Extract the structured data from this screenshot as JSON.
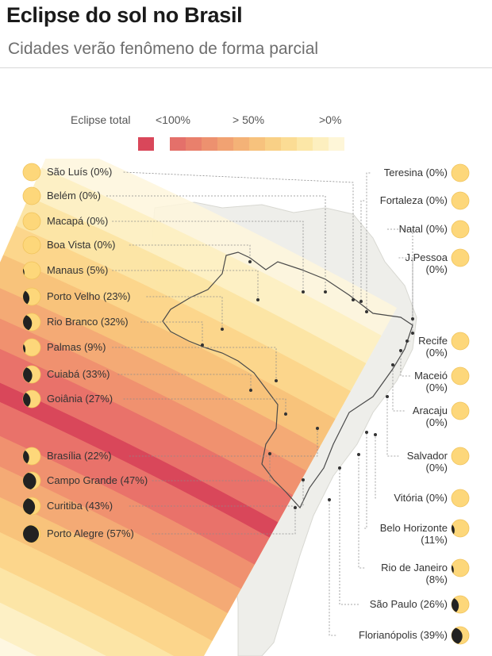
{
  "header": {
    "title": "Eclipse do sol no Brasil",
    "subtitle": "Cidades verão fenômeno de forma parcial"
  },
  "legend": {
    "total_label": "Eclipse total",
    "total_color": "#d9475a",
    "scale_labels": [
      "<100%",
      "> 50%",
      ">0%"
    ],
    "scale_colors": [
      "#e4706a",
      "#e9806c",
      "#ed916f",
      "#f1a272",
      "#f4b277",
      "#f7c27d",
      "#f9d086",
      "#fbdc94",
      "#fce7a7",
      "#fdefbf",
      "#fef6d8"
    ]
  },
  "colors": {
    "sun": "#fdd77a",
    "sun_stroke": "#f0c35c",
    "moon": "#222222",
    "leader": "#8a8a8a"
  },
  "cities_left": [
    {
      "label": "São Luís (0%)",
      "coverage": 0
    },
    {
      "label": "Belém (0%)",
      "coverage": 0
    },
    {
      "label": "Macapá (0%)",
      "coverage": 0
    },
    {
      "label": "Boa Vista (0%)",
      "coverage": 0
    },
    {
      "label": "Manaus (5%)",
      "coverage": 5
    },
    {
      "label": "Porto Velho (23%)",
      "coverage": 23
    },
    {
      "label": "Rio Branco (32%)",
      "coverage": 32
    },
    {
      "label": "Palmas (9%)",
      "coverage": 9
    },
    {
      "label": "Cuiabá (33%)",
      "coverage": 33
    },
    {
      "label": "Goiânia (27%)",
      "coverage": 27
    },
    {
      "label": "Brasília (22%)",
      "coverage": 22
    },
    {
      "label": "Campo Grande (47%)",
      "coverage": 47
    },
    {
      "label": "Curitiba (43%)",
      "coverage": 43
    },
    {
      "label": "Porto Alegre (57%)",
      "coverage": 57
    }
  ],
  "cities_right": [
    {
      "label": "Teresina (0%)",
      "line2": "",
      "coverage": 0
    },
    {
      "label": "Fortaleza (0%)",
      "line2": "",
      "coverage": 0
    },
    {
      "label": "Natal (0%)",
      "line2": "",
      "coverage": 0
    },
    {
      "label": "J.Pessoa",
      "line2": "(0%)",
      "coverage": 0
    },
    {
      "label": "Recife",
      "line2": "(0%)",
      "coverage": 0
    },
    {
      "label": "Maceió",
      "line2": "(0%)",
      "coverage": 0
    },
    {
      "label": "Aracaju",
      "line2": "(0%)",
      "coverage": 0
    },
    {
      "label": "Salvador",
      "line2": "(0%)",
      "coverage": 0
    },
    {
      "label": "Vitória (0%)",
      "line2": "",
      "coverage": 0
    },
    {
      "label": "Belo Horizonte",
      "line2": "(11%)",
      "coverage": 11
    },
    {
      "label": "Rio de Janeiro",
      "line2": "(8%)",
      "coverage": 8
    },
    {
      "label": "São Paulo (26%)",
      "line2": "",
      "coverage": 26
    },
    {
      "label": "Florianópolis (39%)",
      "line2": "",
      "coverage": 39
    }
  ]
}
